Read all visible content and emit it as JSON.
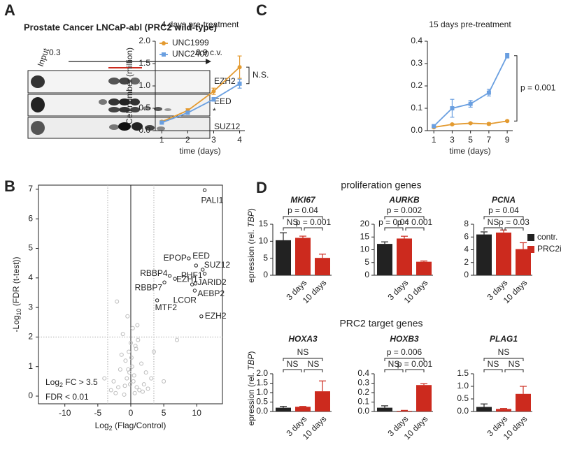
{
  "panels": [
    "A",
    "B",
    "C",
    "D"
  ],
  "blot": {
    "title": "Prostate Cancer LNCaP-abl (PRC2 wild-type)",
    "input": "Input",
    "start": "0.3",
    "end": "0.9 c.v.",
    "bands": [
      "EZH2",
      "EED",
      "*",
      "SUZ12"
    ]
  },
  "sections": [
    "proliferation genes",
    "PRC2 target genes"
  ],
  "legend": [
    {
      "name": "contr.",
      "color": "#222222"
    },
    {
      "name": "PRC2i",
      "color": "#cc2a1e"
    }
  ],
  "chart_data": [
    {
      "type": "line",
      "title": "4 days pre-treatment",
      "y_label": "Cell number (million)",
      "x_label": "time (days)",
      "x": [
        1,
        2,
        3,
        4
      ],
      "xlim": [
        0.75,
        4.2
      ],
      "xticks": [
        1,
        2,
        3,
        4
      ],
      "ylim": [
        0,
        2
      ],
      "yticks": [
        {
          "value": 0,
          "label": "0.0"
        },
        0.5,
        {
          "value": 1,
          "label": "1.0"
        },
        1.5,
        {
          "value": 2,
          "label": "2.0"
        }
      ],
      "series": [
        {
          "name": "UNC1999",
          "color": "#e39a30",
          "marker": "circle",
          "values": [
            0.2,
            0.45,
            0.88,
            1.42
          ],
          "errors": [
            0.02,
            0.04,
            0.07,
            0.25
          ]
        },
        {
          "name": "UNC2400",
          "color": "#6a9fe0",
          "marker": "square",
          "values": [
            0.18,
            0.4,
            0.7,
            1.05
          ],
          "errors": [
            0.02,
            0.03,
            0.04,
            0.1
          ]
        }
      ],
      "annotation": "N.S."
    },
    {
      "type": "line",
      "title": "15 days pre-treatment",
      "x_label": "time (days)",
      "x": [
        1,
        3,
        5,
        7,
        9
      ],
      "xlim": [
        0.3,
        9.6
      ],
      "xticks": [
        1,
        3,
        5,
        7,
        9
      ],
      "ylim": [
        0,
        0.4
      ],
      "yticks": [
        {
          "value": 0,
          "label": "0.0"
        },
        0.1,
        0.2,
        0.3,
        0.4
      ],
      "series": [
        {
          "name": "UNC1999",
          "color": "#e39a30",
          "marker": "circle",
          "values": [
            0.015,
            0.028,
            0.033,
            0.03,
            0.043
          ],
          "errors": [
            0.003,
            0.003,
            0.003,
            0.005,
            0.003
          ]
        },
        {
          "name": "UNC2400",
          "color": "#6a9fe0",
          "marker": "square",
          "values": [
            0.02,
            0.1,
            0.12,
            0.17,
            0.335
          ],
          "errors": [
            0.005,
            0.04,
            0.015,
            0.015,
            0.01
          ]
        }
      ],
      "annotation": "p = 0.001"
    },
    {
      "type": "scatter",
      "y_label": [
        "-Log",
        "10",
        " (FDR (t-test))"
      ],
      "x_label": [
        "Log",
        "2",
        " (Flag/Control)"
      ],
      "note": [
        [
          "Log",
          "2",
          " FC >  3.5"
        ],
        "FDR <  0.01"
      ],
      "x_thresholds": [
        -3.5,
        3.5
      ],
      "y_threshold": 2,
      "xlim": [
        -14,
        13.9
      ],
      "xticks": [
        -10,
        -5,
        0,
        5,
        10
      ],
      "ylim": [
        -0.26,
        7.14
      ],
      "yticks": [
        0,
        1,
        2,
        3,
        4,
        5,
        6,
        7
      ],
      "labeled": {
        "color": "#222222",
        "labels": [
          "PALI1",
          "EPOP",
          "EED",
          "SUZ12",
          "PHF1",
          "JARID2",
          "AEBP2",
          "RBBP4",
          "EZH1",
          "RBBP7",
          "LCOR",
          "MTF2",
          "EZH2"
        ],
        "x": [
          11.2,
          8.8,
          9.9,
          10.9,
          11.2,
          9.8,
          9.7,
          5.9,
          6.7,
          5.1,
          9.3,
          4.0,
          10.7
        ],
        "y": [
          6.97,
          4.66,
          4.42,
          4.28,
          4.14,
          3.81,
          3.57,
          4.07,
          3.97,
          3.85,
          3.78,
          3.24,
          2.7
        ]
      },
      "background": {
        "color": "#bbbbbb",
        "x": [
          -2.1,
          -0.5,
          0.3,
          -1.2,
          1.1,
          0.8,
          -0.3,
          0.1,
          -0.8,
          1.6,
          -1.6,
          2.3,
          -2.6,
          0.5,
          -0.1,
          0.9,
          -0.6,
          1.3,
          2.0,
          -1.9,
          3.5,
          7.0,
          -4.0,
          5.0,
          0.2,
          -0.2,
          0.6,
          -1.0,
          1.8,
          -2.3,
          0.0,
          0.4,
          -0.4,
          2.6,
          -3.0,
          1.0,
          -1.4,
          0.7,
          3.1,
          -0.9
        ],
        "y": [
          3.2,
          2.7,
          2.3,
          2.1,
          1.9,
          1.6,
          1.5,
          1.3,
          1.2,
          1.1,
          0.9,
          0.8,
          0.5,
          0.7,
          0.4,
          0.3,
          0.6,
          0.2,
          0.4,
          0.3,
          1.5,
          1.9,
          0.6,
          0.5,
          1.0,
          0.8,
          0.1,
          0.05,
          0.15,
          0.1,
          1.8,
          0.5,
          0.9,
          0.25,
          0.2,
          2.4,
          1.4,
          1.7,
          0.6,
          0.35
        ]
      }
    },
    {
      "type": "bar",
      "title": "MKI67",
      "y_label": [
        "epression (rel. ",
        "TBP",
        ")"
      ],
      "categories": [
        null,
        "3 days",
        "10 days"
      ],
      "values": [
        10.3,
        11.0,
        5.1
      ],
      "errors": [
        2.2,
        0.5,
        1.1
      ],
      "bar_colors": [
        "#222222",
        "#cc2a1e",
        "#cc2a1e"
      ],
      "ylim": [
        0,
        15
      ],
      "yticks": [
        0,
        5,
        10,
        15
      ],
      "comparisons": [
        "p = 0.04",
        "NS",
        "p = 0.001"
      ]
    },
    {
      "type": "bar",
      "title": "AURKB",
      "categories": [
        null,
        "3 days",
        "10 days"
      ],
      "values": [
        12.3,
        14.4,
        5.3
      ],
      "errors": [
        0.8,
        0.9,
        0.3
      ],
      "bar_colors": [
        "#222222",
        "#cc2a1e",
        "#cc2a1e"
      ],
      "ylim": [
        0,
        20
      ],
      "yticks": [
        0,
        5,
        10,
        15,
        20
      ],
      "comparisons": [
        "p = 0.002",
        "p = 0.04",
        "p = 0.001"
      ]
    },
    {
      "type": "bar",
      "title": "PCNA",
      "categories": [
        null,
        "3 days",
        "10 days"
      ],
      "values": [
        6.4,
        6.7,
        4.1
      ],
      "errors": [
        0.4,
        0.4,
        1.0
      ],
      "bar_colors": [
        "#222222",
        "#cc2a1e",
        "#cc2a1e"
      ],
      "ylim": [
        0,
        8
      ],
      "yticks": [
        0,
        2,
        4,
        6,
        8
      ],
      "comparisons": [
        "p = 0.04",
        "NS",
        "p = 0.03"
      ]
    },
    {
      "type": "bar",
      "title": "HOXA3",
      "y_label": [
        "epression (rel. ",
        "TBP",
        ")"
      ],
      "categories": [
        null,
        "3 days",
        "10 days"
      ],
      "values": [
        0.2,
        0.25,
        1.07
      ],
      "errors": [
        0.07,
        0.02,
        0.55
      ],
      "bar_colors": [
        "#222222",
        "#cc2a1e",
        "#cc2a1e"
      ],
      "ylim": [
        0,
        2
      ],
      "yticks": [
        {
          "value": 0,
          "label": "0.0"
        },
        0.5,
        {
          "value": 1,
          "label": "1.0"
        },
        1.5,
        {
          "value": 2,
          "label": "2.0"
        }
      ],
      "comparisons": [
        "NS",
        "NS",
        "NS"
      ]
    },
    {
      "type": "bar",
      "title": "HOXB3",
      "categories": [
        null,
        "3 days",
        "10 days"
      ],
      "values": [
        0.04,
        0.007,
        0.28
      ],
      "errors": [
        0.02,
        0.005,
        0.015
      ],
      "bar_colors": [
        "#222222",
        "#cc2a1e",
        "#cc2a1e"
      ],
      "ylim": [
        0,
        0.4
      ],
      "yticks": [
        {
          "value": 0,
          "label": "0.0"
        },
        0.1,
        0.2,
        0.3,
        0.4
      ],
      "comparisons": [
        "p = 0.006",
        "NS",
        "p = 0.001"
      ]
    },
    {
      "type": "bar",
      "title": "PLAG1",
      "categories": [
        null,
        "3 days",
        "10 days"
      ],
      "values": [
        0.18,
        0.1,
        0.7
      ],
      "errors": [
        0.12,
        0.02,
        0.3
      ],
      "bar_colors": [
        "#222222",
        "#cc2a1e",
        "#cc2a1e"
      ],
      "ylim": [
        0,
        1.5
      ],
      "yticks": [
        {
          "value": 0,
          "label": "0.0"
        },
        0.5,
        {
          "value": 1,
          "label": "1.0"
        },
        1.5
      ],
      "comparisons": [
        "NS",
        "NS",
        "NS"
      ]
    }
  ]
}
